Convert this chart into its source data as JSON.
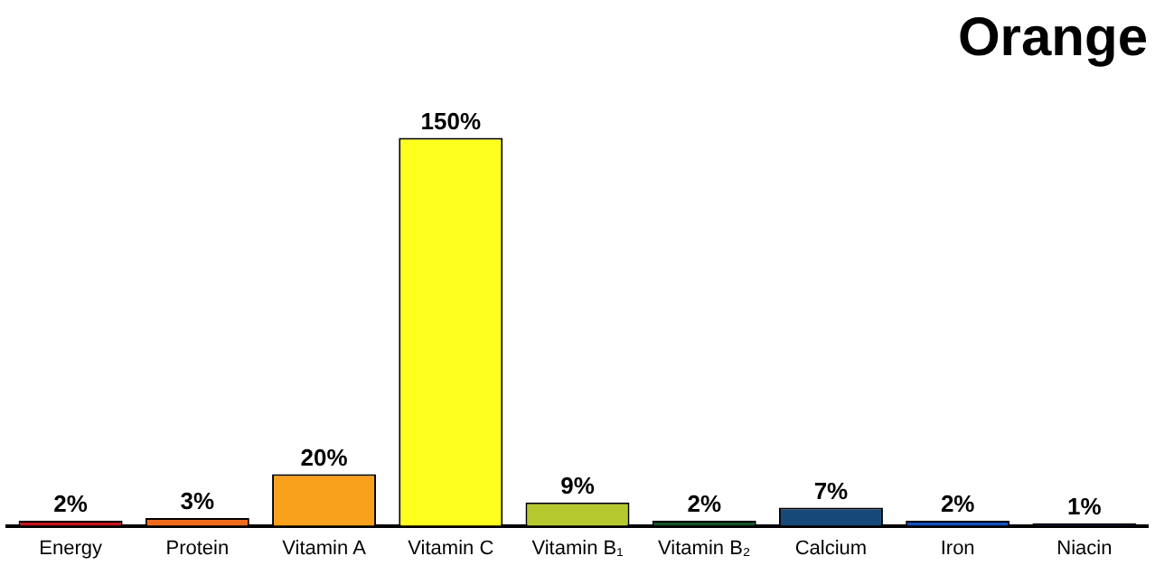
{
  "chart_data": {
    "type": "bar",
    "title": "Orange",
    "categories": [
      "Energy",
      "Protein",
      "Vitamin A",
      "Vitamin C",
      "Vitamin B₁",
      "Vitamin B₂",
      "Calcium",
      "Iron",
      "Niacin"
    ],
    "values": [
      2,
      3,
      20,
      150,
      9,
      2,
      7,
      2,
      1
    ],
    "value_labels": [
      "2%",
      "3%",
      "20%",
      "150%",
      "9%",
      "2%",
      "7%",
      "2%",
      "1%"
    ],
    "colors": [
      "#c8141e",
      "#f06a1e",
      "#f9a11c",
      "#ffff1e",
      "#b5c92e",
      "#17532a",
      "#17487a",
      "#1450c0",
      "#15163a"
    ],
    "grid": false,
    "legend": false
  }
}
